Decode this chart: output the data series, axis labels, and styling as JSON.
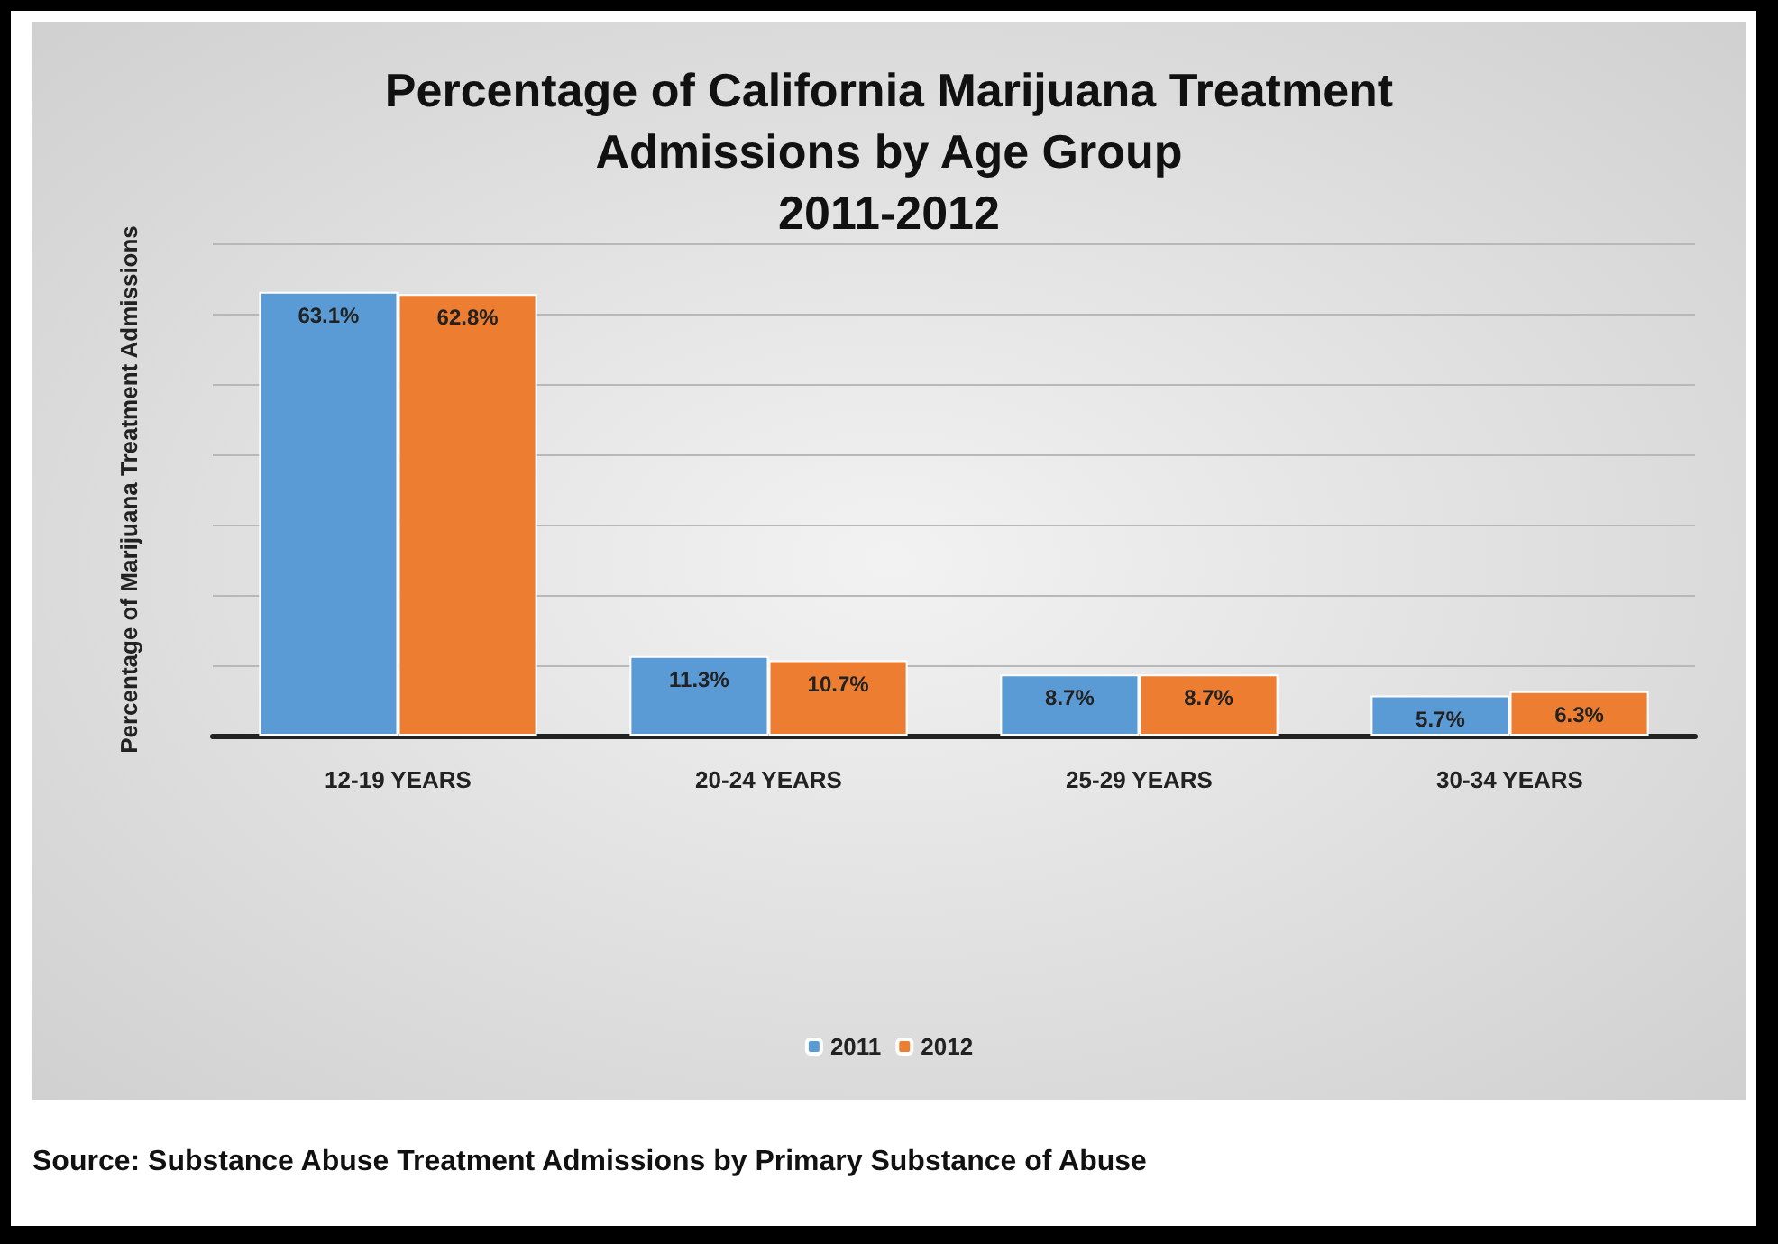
{
  "chart_data": {
    "type": "bar",
    "title": "Percentage of California Marijuana Treatment\nAdmissions by Age Group\n2011-2012",
    "ylabel": "Percentage of Marijuana Treatment Admissions",
    "categories": [
      "12-19 YEARS",
      "20-24 YEARS",
      "25-29 YEARS",
      "30-34 YEARS"
    ],
    "series": [
      {
        "name": "2011",
        "color": "#5b9bd5",
        "values": [
          63.1,
          11.3,
          8.7,
          5.7
        ],
        "value_labels": [
          "63.1%",
          "11.3%",
          "8.7%",
          "5.7%"
        ]
      },
      {
        "name": "2012",
        "color": "#ed7d31",
        "values": [
          62.8,
          10.7,
          8.7,
          6.3
        ],
        "value_labels": [
          "62.8%",
          "10.7%",
          "8.7%",
          "6.3%"
        ]
      }
    ],
    "ylim": [
      0,
      70
    ],
    "yticks": [
      {
        "value": 0,
        "label": null
      },
      {
        "value": 10,
        "label": null
      },
      {
        "value": 20,
        "label": null
      },
      {
        "value": 30,
        "label": null
      },
      {
        "value": 40,
        "label": null
      },
      {
        "value": 50,
        "label": null
      },
      {
        "value": 60,
        "label": null
      },
      {
        "value": 70,
        "label": null
      }
    ],
    "grid": "y",
    "legend": "bottom",
    "tick_labels": "x",
    "annotations": [
      "Source:  Substance Abuse Treatment Admissions by Primary Substance of Abuse"
    ]
  }
}
